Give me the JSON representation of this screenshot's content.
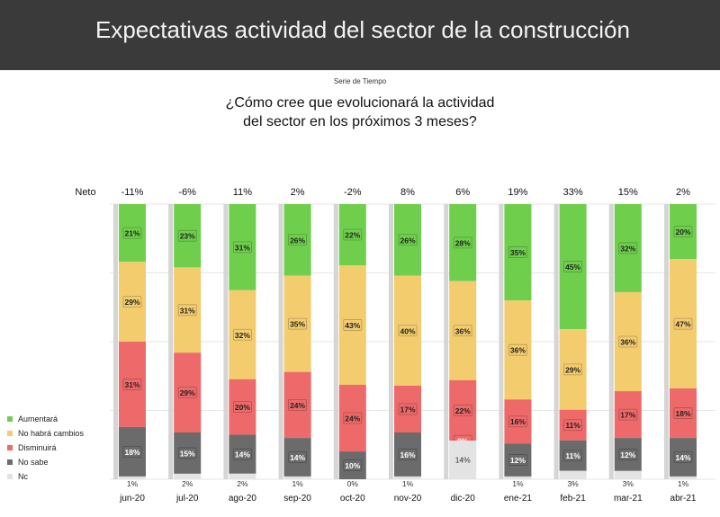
{
  "header": {
    "title": "Expectativas actividad del sector de la construcción"
  },
  "subtitle": "Serie de Tiempo",
  "question": {
    "line1": "¿Cómo cree que evolucionará la actividad",
    "line2": "del sector en los próximos 3 meses?"
  },
  "colors": {
    "header_bg": "#3a3a3a",
    "aumentara": "#6fcf4d",
    "no_habra_cambios": "#f3cc6e",
    "disminuira": "#ee6969",
    "no_sabe": "#6b6b6b",
    "nc": "#e3e3e3"
  },
  "chart_data": {
    "type": "bar",
    "stacked": true,
    "percent": true,
    "title": "¿Cómo cree que evolucionará la actividad del sector en los próximos 3 meses?",
    "neto_label": "Neto",
    "categories": [
      "jun-20",
      "jul-20",
      "ago-20",
      "sep-20",
      "oct-20",
      "nov-20",
      "dic-20",
      "ene-21",
      "feb-21",
      "mar-21",
      "abr-21"
    ],
    "neto": [
      "-11%",
      "-6%",
      "11%",
      "2%",
      "-2%",
      "8%",
      "6%",
      "19%",
      "33%",
      "15%",
      "2%"
    ],
    "series": [
      {
        "name": "Aumentará",
        "key": "aumentara",
        "values": [
          21,
          23,
          31,
          26,
          22,
          26,
          28,
          35,
          45,
          32,
          20
        ]
      },
      {
        "name": "No habrá cambios",
        "key": "no_habra_cambios",
        "values": [
          29,
          31,
          32,
          35,
          43,
          40,
          36,
          36,
          29,
          36,
          47
        ]
      },
      {
        "name": "Disminuirá",
        "key": "disminuira",
        "values": [
          31,
          29,
          20,
          24,
          24,
          17,
          22,
          16,
          11,
          17,
          18
        ]
      },
      {
        "name": "No sabe",
        "key": "no_sabe",
        "values": [
          18,
          15,
          14,
          14,
          10,
          16,
          0,
          12,
          11,
          12,
          14
        ]
      },
      {
        "name": "Nc",
        "key": "nc",
        "values": [
          1,
          2,
          2,
          1,
          0,
          1,
          14,
          1,
          3,
          3,
          1
        ]
      }
    ],
    "ylim": [
      0,
      100
    ]
  }
}
